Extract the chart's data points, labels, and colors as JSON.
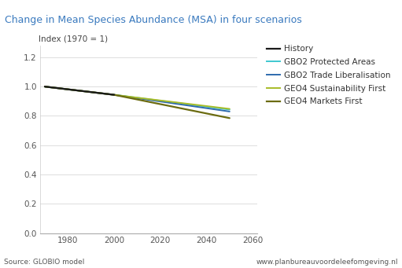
{
  "title": "Change in Mean Species Abundance (MSA) in four scenarios",
  "title_bg_color": "#d9eef8",
  "title_text_color": "#3a7abf",
  "ylabel": "Index (1970 = 1)",
  "source_left": "Source: GLOBIO model",
  "source_right": "www.planbureauvoordeleefomgeving.nl",
  "ylim": [
    0.0,
    1.28
  ],
  "yticks": [
    0.0,
    0.2,
    0.4,
    0.6,
    0.8,
    1.0,
    1.2
  ],
  "xlim": [
    1968,
    2062
  ],
  "xticks": [
    1980,
    2000,
    2020,
    2040,
    2060
  ],
  "plot_bg_color": "#ffffff",
  "grid_color": "#dddddd",
  "series": [
    {
      "label": "History",
      "color": "#1a1a1a",
      "linewidth": 1.6,
      "x": [
        1970,
        2000
      ],
      "y": [
        1.0,
        0.944
      ]
    },
    {
      "label": "GBO2 Protected Areas",
      "color": "#3ec8d0",
      "linewidth": 1.4,
      "x": [
        1970,
        2000,
        2050
      ],
      "y": [
        1.0,
        0.944,
        0.843
      ]
    },
    {
      "label": "GBO2 Trade Liberalisation",
      "color": "#2e6aad",
      "linewidth": 1.4,
      "x": [
        1970,
        2000,
        2050
      ],
      "y": [
        1.0,
        0.944,
        0.83
      ]
    },
    {
      "label": "GEO4 Sustainability First",
      "color": "#a8bc28",
      "linewidth": 1.4,
      "x": [
        1970,
        2000,
        2050
      ],
      "y": [
        1.0,
        0.944,
        0.848
      ]
    },
    {
      "label": "GEO4 Markets First",
      "color": "#6b6b10",
      "linewidth": 1.6,
      "x": [
        1970,
        2000,
        2050
      ],
      "y": [
        1.0,
        0.944,
        0.785
      ]
    }
  ]
}
